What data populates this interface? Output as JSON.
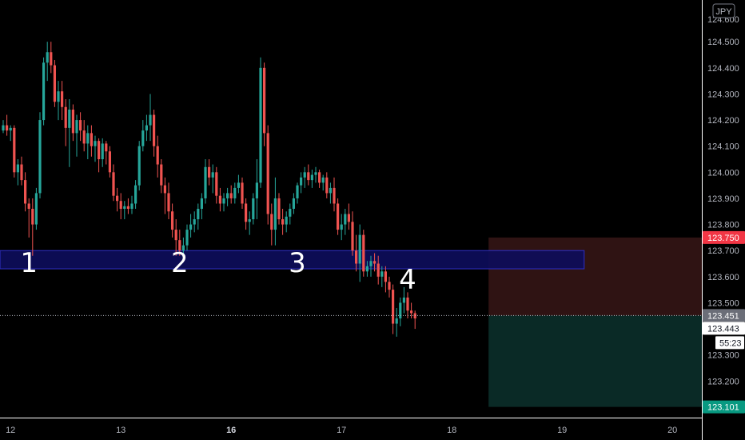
{
  "chart_data": {
    "type": "candlestick",
    "symbol_currency": "JPY",
    "x_ticks": [
      {
        "label": "12",
        "bar": 2,
        "bold": false
      },
      {
        "label": "13",
        "bar": 32,
        "bold": false
      },
      {
        "label": "16",
        "bar": 62,
        "bold": true
      },
      {
        "label": "17",
        "bar": 92,
        "bold": false
      },
      {
        "label": "18",
        "bar": 122,
        "bold": false
      },
      {
        "label": "19",
        "bar": 152,
        "bold": false
      },
      {
        "label": "20",
        "bar": 182,
        "bold": false
      }
    ],
    "y_ticks": [
      "124.500",
      "124.400",
      "124.300",
      "124.200",
      "124.100",
      "124.000",
      "123.900",
      "123.800",
      "123.700",
      "123.600",
      "123.500",
      "123.300",
      "123.200"
    ],
    "y_top_partial": "124.600",
    "ylim": [
      123.06,
      124.66
    ],
    "zone": {
      "top": 123.7,
      "bottom": 123.63,
      "bar_start": 0,
      "bar_end": 158
    },
    "wave_labels": [
      {
        "text": "1",
        "bar": 7,
        "price": 123.655
      },
      {
        "text": "2",
        "bar": 48,
        "price": 123.655
      },
      {
        "text": "3",
        "bar": 80,
        "price": 123.655
      },
      {
        "text": "4",
        "bar": 110,
        "price": 123.59
      }
    ],
    "position": {
      "bar_start": 132,
      "bar_end": 193,
      "stop": 123.75,
      "entry": 123.451,
      "target": 123.101
    },
    "price_tags": {
      "stop": "123.750",
      "entry": "123.451",
      "last": "123.443",
      "countdown": "55:23",
      "target": "123.101"
    },
    "colors": {
      "up": "#26a69a",
      "down": "#ef5350",
      "zone_fill": "#0d0d5c",
      "zone_border": "#2f2fc8",
      "stop_zone": "#2f1313",
      "target_zone": "#0a2a26",
      "stop_tag": "#f23645",
      "target_tag": "#089981",
      "entry_tag": "#6b6e78"
    },
    "ohlc": [
      [
        124.16,
        124.2,
        124.15,
        124.18
      ],
      [
        124.18,
        124.22,
        124.14,
        124.16
      ],
      [
        124.16,
        124.18,
        124.12,
        124.17
      ],
      [
        124.17,
        124.18,
        123.98,
        124.0
      ],
      [
        124.0,
        124.05,
        123.95,
        124.03
      ],
      [
        124.03,
        124.06,
        123.95,
        123.97
      ],
      [
        123.97,
        124.0,
        123.85,
        123.88
      ],
      [
        123.88,
        123.9,
        123.75,
        123.86
      ],
      [
        123.86,
        123.9,
        123.68,
        123.8
      ],
      [
        123.8,
        123.94,
        123.78,
        123.92
      ],
      [
        123.92,
        124.23,
        123.9,
        124.2
      ],
      [
        124.2,
        124.44,
        124.18,
        124.42
      ],
      [
        124.42,
        124.5,
        124.35,
        124.46
      ],
      [
        124.46,
        124.5,
        124.38,
        124.41
      ],
      [
        124.41,
        124.43,
        124.25,
        124.27
      ],
      [
        124.27,
        124.35,
        124.2,
        124.31
      ],
      [
        124.31,
        124.35,
        124.2,
        124.25
      ],
      [
        124.25,
        124.28,
        124.1,
        124.17
      ],
      [
        124.17,
        124.28,
        124.02,
        124.24
      ],
      [
        124.24,
        124.26,
        124.12,
        124.15
      ],
      [
        124.15,
        124.22,
        124.06,
        124.2
      ],
      [
        124.2,
        124.23,
        124.12,
        124.16
      ],
      [
        124.16,
        124.2,
        124.08,
        124.11
      ],
      [
        124.11,
        124.18,
        124.05,
        124.15
      ],
      [
        124.15,
        124.18,
        124.06,
        124.1
      ],
      [
        124.1,
        124.14,
        124.04,
        124.12
      ],
      [
        124.12,
        124.13,
        124.0,
        124.05
      ],
      [
        124.05,
        124.13,
        124.02,
        124.11
      ],
      [
        124.11,
        124.12,
        124.03,
        124.08
      ],
      [
        124.08,
        124.1,
        123.98,
        124.0
      ],
      [
        124.0,
        124.03,
        123.89,
        123.91
      ],
      [
        123.91,
        123.94,
        123.85,
        123.89
      ],
      [
        123.89,
        123.92,
        123.82,
        123.86
      ],
      [
        123.86,
        123.89,
        123.82,
        123.87
      ],
      [
        123.87,
        123.9,
        123.84,
        123.86
      ],
      [
        123.86,
        123.91,
        123.84,
        123.88
      ],
      [
        123.88,
        123.97,
        123.86,
        123.95
      ],
      [
        123.95,
        124.12,
        123.93,
        124.1
      ],
      [
        124.1,
        124.2,
        124.08,
        124.16
      ],
      [
        124.16,
        124.22,
        124.12,
        124.18
      ],
      [
        124.18,
        124.3,
        124.12,
        124.22
      ],
      [
        124.22,
        124.24,
        124.06,
        124.1
      ],
      [
        124.1,
        124.14,
        123.98,
        124.03
      ],
      [
        124.03,
        124.05,
        123.92,
        123.95
      ],
      [
        123.95,
        123.98,
        123.84,
        123.92
      ],
      [
        123.92,
        123.96,
        123.82,
        123.85
      ],
      [
        123.85,
        123.88,
        123.75,
        123.78
      ],
      [
        123.78,
        123.82,
        123.68,
        123.74
      ],
      [
        123.74,
        123.78,
        123.68,
        123.7
      ],
      [
        123.7,
        123.75,
        123.67,
        123.72
      ],
      [
        123.72,
        123.8,
        123.7,
        123.78
      ],
      [
        123.78,
        123.84,
        123.75,
        123.8
      ],
      [
        123.8,
        123.85,
        123.77,
        123.82
      ],
      [
        123.82,
        123.88,
        123.78,
        123.86
      ],
      [
        123.86,
        123.92,
        123.82,
        123.9
      ],
      [
        123.9,
        124.05,
        123.88,
        124.02
      ],
      [
        124.02,
        124.05,
        123.95,
        123.98
      ],
      [
        123.98,
        124.03,
        123.92,
        124.0
      ],
      [
        124.0,
        124.02,
        123.88,
        123.91
      ],
      [
        123.91,
        123.94,
        123.85,
        123.88
      ],
      [
        123.88,
        123.92,
        123.85,
        123.9
      ],
      [
        123.9,
        123.94,
        123.87,
        123.92
      ],
      [
        123.92,
        123.95,
        123.88,
        123.9
      ],
      [
        123.9,
        123.96,
        123.88,
        123.94
      ],
      [
        123.94,
        123.99,
        123.92,
        123.96
      ],
      [
        123.96,
        123.98,
        123.86,
        123.88
      ],
      [
        123.88,
        123.9,
        123.78,
        123.81
      ],
      [
        123.81,
        123.85,
        123.76,
        123.82
      ],
      [
        123.82,
        123.92,
        123.8,
        123.9
      ],
      [
        123.9,
        124.05,
        123.82,
        123.96
      ],
      [
        123.96,
        124.44,
        123.94,
        124.4
      ],
      [
        124.4,
        124.42,
        124.1,
        124.15
      ],
      [
        124.15,
        124.18,
        123.8,
        123.84
      ],
      [
        123.84,
        123.88,
        123.72,
        123.78
      ],
      [
        123.78,
        123.98,
        123.72,
        123.9
      ],
      [
        123.9,
        123.92,
        123.8,
        123.82
      ],
      [
        123.82,
        123.86,
        123.76,
        123.8
      ],
      [
        123.8,
        123.85,
        123.77,
        123.83
      ],
      [
        123.83,
        123.88,
        123.8,
        123.86
      ],
      [
        123.86,
        123.92,
        123.84,
        123.9
      ],
      [
        123.9,
        123.96,
        123.88,
        123.95
      ],
      [
        123.95,
        124.0,
        123.92,
        123.98
      ],
      [
        123.98,
        124.02,
        123.94,
        124.0
      ],
      [
        124.0,
        124.03,
        123.95,
        123.97
      ],
      [
        123.97,
        124.01,
        123.94,
        123.99
      ],
      [
        123.99,
        124.02,
        123.96,
        124.0
      ],
      [
        124.0,
        124.01,
        123.94,
        123.96
      ],
      [
        123.96,
        123.99,
        123.93,
        123.98
      ],
      [
        123.98,
        124.0,
        123.9,
        123.92
      ],
      [
        123.92,
        123.96,
        123.88,
        123.94
      ],
      [
        123.94,
        123.98,
        123.85,
        123.88
      ],
      [
        123.88,
        123.9,
        123.76,
        123.78
      ],
      [
        123.78,
        123.84,
        123.74,
        123.8
      ],
      [
        123.8,
        123.86,
        123.76,
        123.84
      ],
      [
        123.84,
        123.88,
        123.78,
        123.81
      ],
      [
        123.81,
        123.85,
        123.68,
        123.7
      ],
      [
        123.7,
        123.76,
        123.62,
        123.65
      ],
      [
        123.65,
        123.8,
        123.58,
        123.76
      ],
      [
        123.76,
        123.78,
        123.6,
        123.62
      ],
      [
        123.62,
        123.66,
        123.6,
        123.64
      ],
      [
        123.64,
        123.68,
        123.6,
        123.66
      ],
      [
        123.66,
        123.69,
        123.62,
        123.65
      ],
      [
        123.65,
        123.68,
        123.57,
        123.6
      ],
      [
        123.6,
        123.64,
        123.56,
        123.62
      ],
      [
        123.62,
        123.64,
        123.54,
        123.58
      ],
      [
        123.58,
        123.6,
        123.52,
        123.55
      ],
      [
        123.55,
        123.57,
        123.38,
        123.42
      ],
      [
        123.42,
        123.48,
        123.37,
        123.44
      ],
      [
        123.44,
        123.52,
        123.41,
        123.5
      ],
      [
        123.5,
        123.56,
        123.46,
        123.52
      ],
      [
        123.52,
        123.54,
        123.44,
        123.47
      ],
      [
        123.47,
        123.5,
        123.44,
        123.46
      ],
      [
        123.46,
        123.47,
        123.4,
        123.44
      ]
    ]
  }
}
